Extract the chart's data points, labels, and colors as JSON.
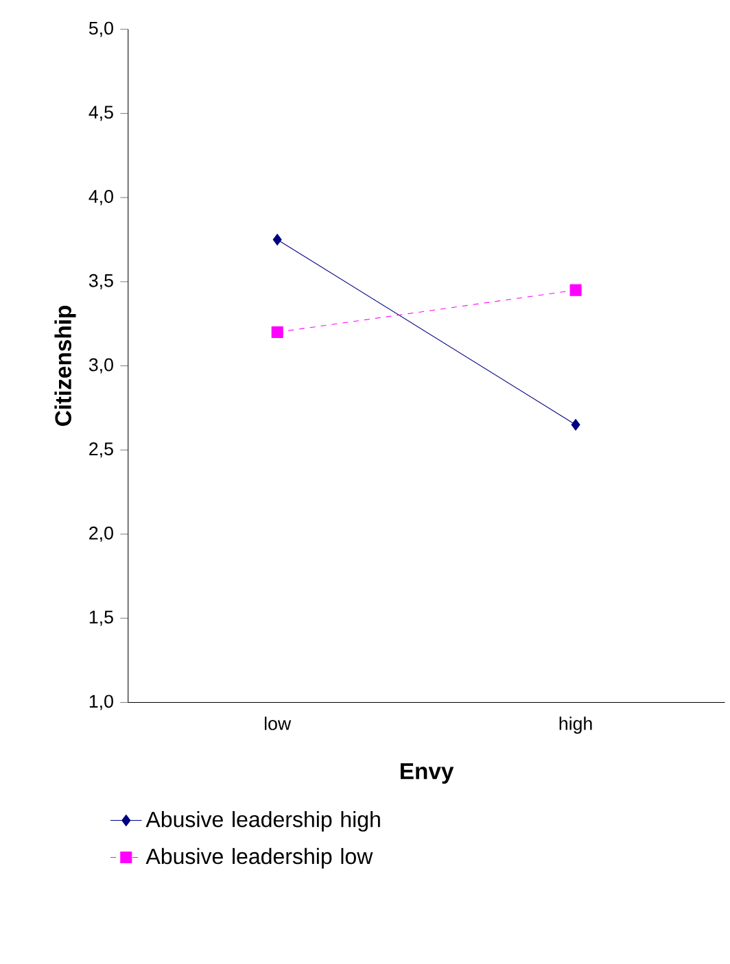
{
  "chart_data": {
    "type": "line",
    "xlabel": "Envy",
    "ylabel": "Citizenship",
    "categories": [
      "low",
      "high"
    ],
    "series": [
      {
        "name": "Abusive leadership high",
        "color": "#000080",
        "values": [
          3.75,
          2.65
        ],
        "marker": "diamond",
        "line_style": "solid"
      },
      {
        "name": "Abusive leadership low",
        "color": "#ff00ff",
        "values": [
          3.2,
          3.45
        ],
        "marker": "square",
        "line_style": "dashed"
      }
    ],
    "ylim": [
      1.0,
      5.0
    ],
    "yticks": [
      {
        "value": 1.0,
        "label": "1,0"
      },
      {
        "value": 1.5,
        "label": "1,5"
      },
      {
        "value": 2.0,
        "label": "2,0"
      },
      {
        "value": 2.5,
        "label": "2,5"
      },
      {
        "value": 3.0,
        "label": "3,0"
      },
      {
        "value": 3.5,
        "label": "3,5"
      },
      {
        "value": 4.0,
        "label": "4,0"
      },
      {
        "value": 4.5,
        "label": "4,5"
      },
      {
        "value": 5.0,
        "label": "5,0"
      }
    ],
    "grid": false,
    "legend": "bottom"
  }
}
